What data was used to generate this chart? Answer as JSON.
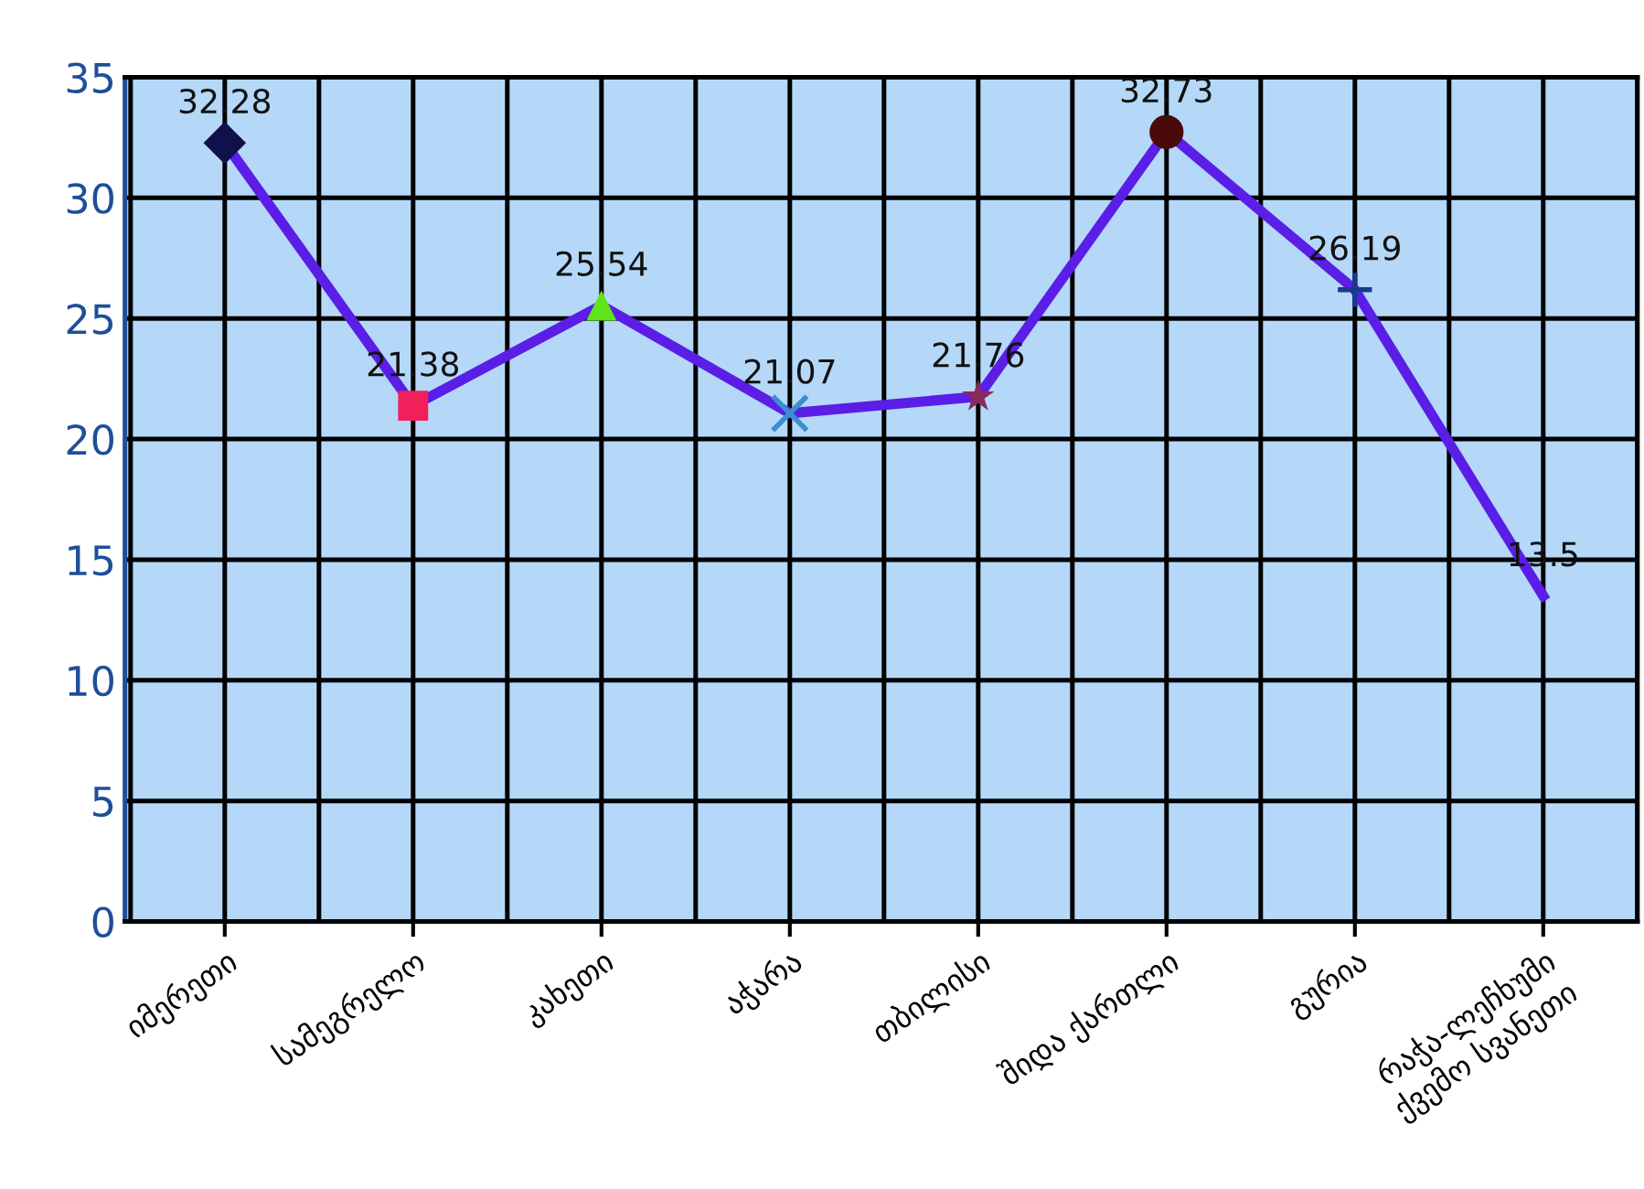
{
  "chart_data": {
    "type": "line",
    "categories": [
      "იმერეთი",
      "სამეგრელო",
      "კახეთი",
      "აჭარა",
      "თბილისი",
      "შიდა ქართლი",
      "გურია",
      "რაჭა-ლეჩხუმი\nქვემო სვანეთი"
    ],
    "series": [
      {
        "color": "#5a1ee6",
        "values": [
          32.28,
          21.38,
          25.54,
          21.07,
          21.76,
          32.73,
          26.19,
          13.5
        ],
        "marker": [
          "diamond",
          "square",
          "triangle",
          "cross",
          "star",
          "circle",
          "plus",
          "none"
        ],
        "colors": [
          "#10104a",
          "#f0205a",
          "#5ee61a",
          "#3a8fd0",
          "#8a2a5a",
          "#4a0a0a",
          "#1a3a8a",
          "#5a1ee6"
        ]
      }
    ],
    "ylim": [
      0,
      35
    ],
    "yticks": [
      0,
      5,
      10,
      15,
      20,
      25,
      30,
      35
    ],
    "grid": true,
    "data_labels": true,
    "line_style": "solid"
  }
}
